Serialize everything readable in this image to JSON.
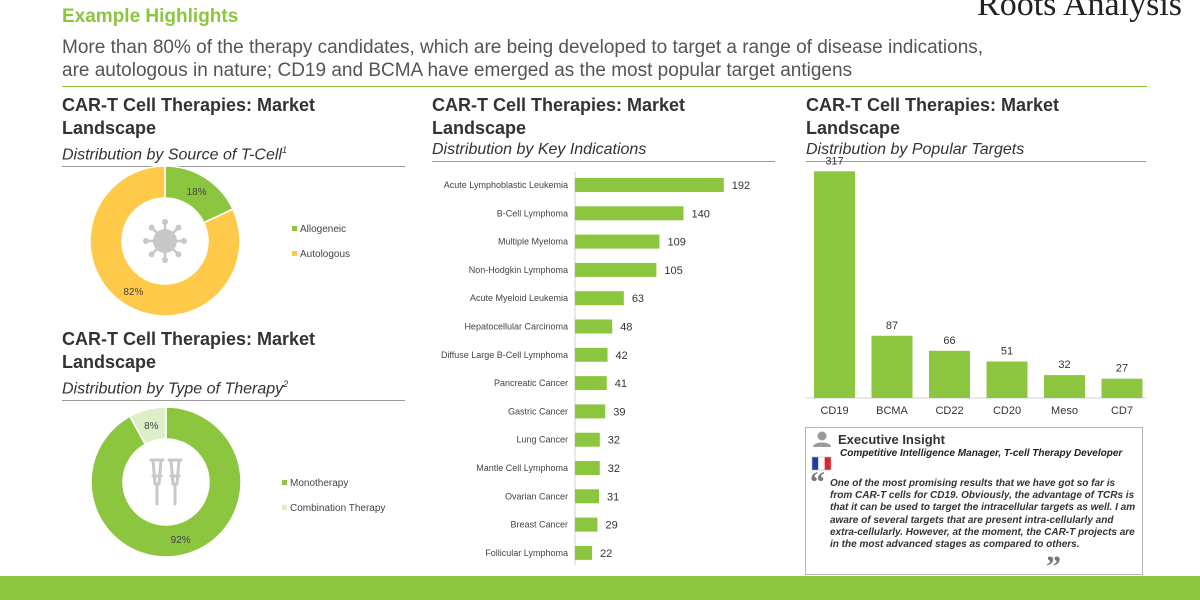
{
  "header": {
    "section_title": "Example Highlights",
    "logo_text": "Roots Analysis",
    "headline_line1": "More than 80% of the therapy candidates, which are being developed to target a range of disease indications,",
    "headline_line2": "are autologous in nature; CD19 and BCMA have emerged as the most popular target antigens"
  },
  "colors": {
    "accent_green": "#8cc63f",
    "autologous_yellow": "#ffc94a",
    "combination_light": "#dcefc9"
  },
  "panels": {
    "source": {
      "title_l1": "CAR-T Cell Therapies: Market",
      "title_l2": "Landscape",
      "subtitle": "Distribution by Source of T-Cell",
      "footnote": "1"
    },
    "type": {
      "title_l1": "CAR-T Cell Therapies: Market",
      "title_l2": "Landscape",
      "subtitle": "Distribution by Type of Therapy",
      "footnote": "2"
    },
    "indications": {
      "title_l1": "CAR-T Cell Therapies: Market",
      "title_l2": "Landscape",
      "subtitle": "Distribution by Key Indications"
    },
    "targets": {
      "title_l1": "CAR-T Cell Therapies: Market",
      "title_l2": "Landscape",
      "subtitle": "Distribution by Popular Targets"
    }
  },
  "chart_data": [
    {
      "type": "pie",
      "labels": [
        "Allogeneic",
        "Autologous"
      ],
      "values": [
        18,
        82
      ],
      "value_labels": [
        "18%",
        "82%"
      ],
      "colors": [
        "#8cc63f",
        "#ffc94a"
      ],
      "legend_position": "right",
      "center_icon": "virus-icon"
    },
    {
      "type": "pie",
      "labels": [
        "Monotherapy",
        "Combination Therapy"
      ],
      "values": [
        92,
        8
      ],
      "value_labels": [
        "92%",
        "8%"
      ],
      "colors": [
        "#8cc63f",
        "#dcefc9"
      ],
      "legend_position": "right",
      "center_icon": "crutches-icon"
    },
    {
      "type": "bar",
      "orientation": "horizontal",
      "categories": [
        "Acute Lymphoblastic Leukemia",
        "B-Cell Lymphoma",
        "Multiple Myeloma",
        "Non-Hodgkin Lymphoma",
        "Acute Myeloid Leukemia",
        "Hepatocellular Carcinoma",
        "Diffuse Large B-Cell Lymphoma",
        "Pancreatic Cancer",
        "Gastric Cancer",
        "Lung Cancer",
        "Mantle Cell Lymphoma",
        "Ovarian Cancer",
        "Breast Cancer",
        "Follicular Lymphoma"
      ],
      "values": [
        192,
        140,
        109,
        105,
        63,
        48,
        42,
        41,
        39,
        32,
        32,
        31,
        29,
        22
      ],
      "xlim": [
        0,
        200
      ],
      "grid": false,
      "color": "#8cc63f"
    },
    {
      "type": "bar",
      "orientation": "vertical",
      "categories": [
        "CD19",
        "BCMA",
        "CD22",
        "CD20",
        "Meso",
        "CD7"
      ],
      "values": [
        317,
        87,
        66,
        51,
        32,
        27
      ],
      "ylim": [
        0,
        330
      ],
      "grid": false,
      "color": "#8cc63f"
    }
  ],
  "insight": {
    "title": "Executive Insight",
    "role": "Competitive Intelligence Manager, T-cell Therapy Developer",
    "quote": "One of the most promising results that we have got so far is from CAR-T cells for CD19. Obviously, the advantage of TCRs is that it can be used to target the intracellular targets as well. I am aware of several targets that are present intra-cellularly and extra-cellularly. However, at the moment, the CAR-T projects are in the most advanced stages as compared to others.",
    "open_quote": "“",
    "close_quote": "”",
    "icons": [
      "person-icon",
      "france-flag-icon"
    ]
  }
}
